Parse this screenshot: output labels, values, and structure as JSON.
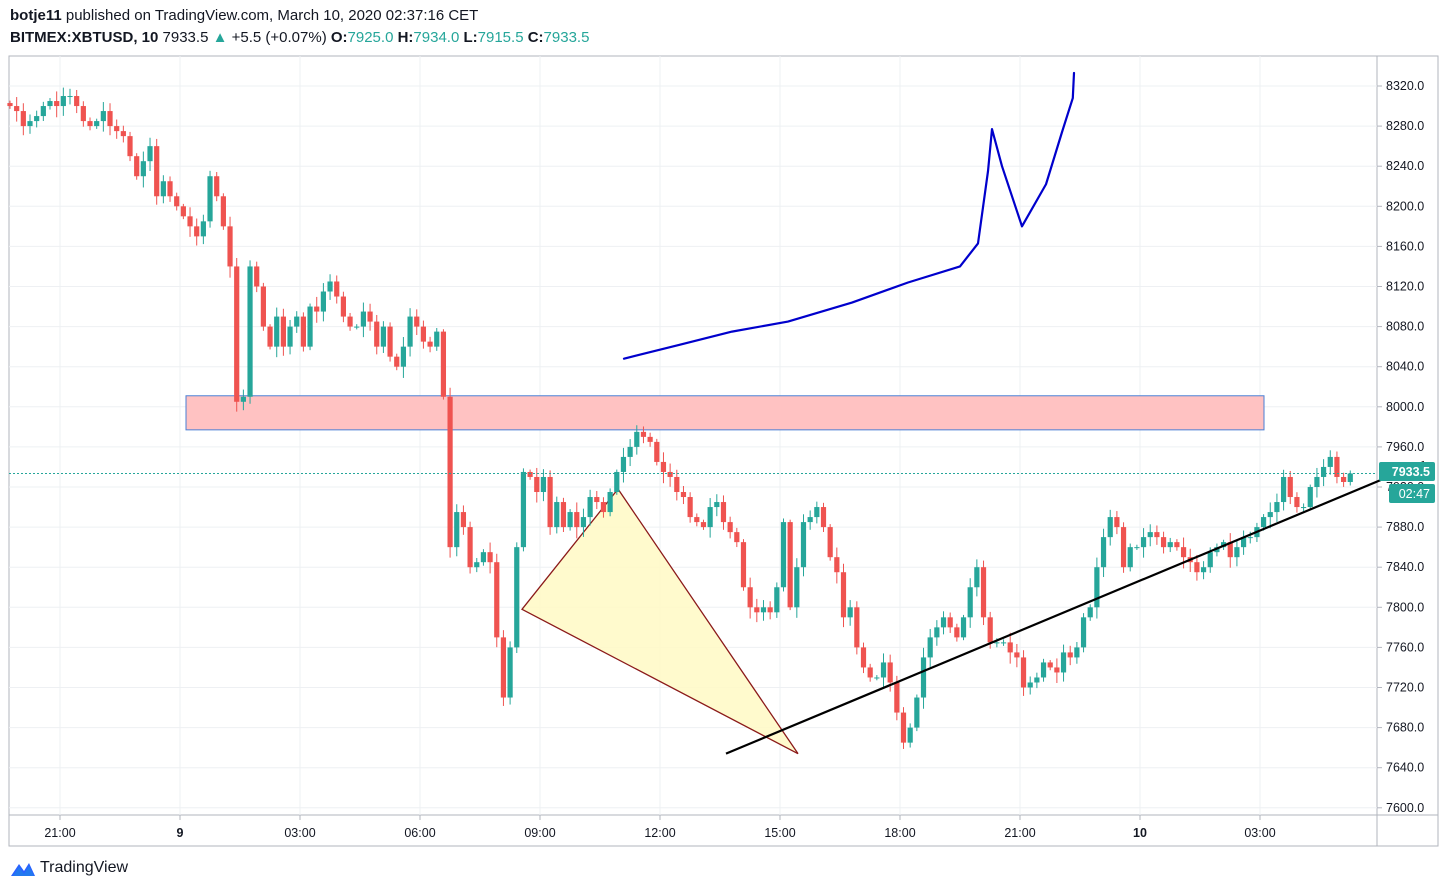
{
  "header": {
    "author": "botje11",
    "published_text": "published on TradingView.com, March 10, 2020 02:37:16 CET",
    "symbol": "BITMEX:XBTUSD, 10",
    "last": "7933.5",
    "arrow": "▲",
    "change": "+5.5 (+0.07%)",
    "o_label": "O:",
    "o_value": "7925.0",
    "h_label": "H:",
    "h_value": "7934.0",
    "l_label": "L:",
    "l_value": "7915.5",
    "c_label": "C:",
    "c_value": "7933.5"
  },
  "price_badge": "7933.5",
  "time_badge": "02:47",
  "footer": {
    "brand": "TradingView",
    "logo_icon": "tradingview-logo-icon"
  },
  "colors": {
    "up": "#26a69a",
    "down": "#ef5350",
    "zone_fill": "#ffc2c2",
    "zone_border": "#4a7fd4",
    "triangle_fill": "#fff9c4",
    "triangle_border": "#8b1a1a",
    "blue_line": "#0000cc",
    "trend_line": "#000000"
  },
  "chart_data": {
    "type": "candlestick",
    "symbol": "BITMEX:XBTUSD",
    "interval": "10",
    "y_ticks": [
      "8320.0",
      "8280.0",
      "8240.0",
      "8200.0",
      "8160.0",
      "8120.0",
      "8080.0",
      "8040.0",
      "8000.0",
      "7960.0",
      "7920.0",
      "7880.0",
      "7840.0",
      "7800.0",
      "7760.0",
      "7720.0",
      "7680.0",
      "7640.0",
      "7600.0"
    ],
    "ylim": [
      7595,
      8345
    ],
    "x_ticks": [
      "21:00",
      "9",
      "03:00",
      "06:00",
      "09:00",
      "12:00",
      "15:00",
      "18:00",
      "21:00",
      "10",
      "03:00"
    ],
    "x_tick_hours": [
      0,
      3,
      6,
      9,
      12,
      15,
      18,
      21,
      24,
      27,
      30
    ],
    "grid": true,
    "candle_start_hour": -1.25,
    "candle_step_hours": 0.1667,
    "closes": [
      8300,
      8295,
      8280,
      8285,
      8290,
      8300,
      8305,
      8300,
      8310,
      8310,
      8300,
      8285,
      8280,
      8285,
      8295,
      8280,
      8275,
      8270,
      8250,
      8230,
      8245,
      8260,
      8210,
      8225,
      8210,
      8200,
      8190,
      8180,
      8170,
      8185,
      8230,
      8210,
      8180,
      8140,
      8005,
      8010,
      8140,
      8120,
      8080,
      8060,
      8090,
      8060,
      8080,
      8090,
      8060,
      8100,
      8095,
      8115,
      8125,
      8110,
      8090,
      8080,
      8080,
      8095,
      8085,
      8060,
      8080,
      8050,
      8040,
      8060,
      8090,
      8080,
      8065,
      8060,
      8075,
      8010,
      7860,
      7895,
      7880,
      7840,
      7845,
      7855,
      7845,
      7770,
      7710,
      7760,
      7860,
      7935,
      7930,
      7915,
      7930,
      7880,
      7905,
      7880,
      7895,
      7880,
      7890,
      7910,
      7905,
      7895,
      7915,
      7935,
      7950,
      7960,
      7975,
      7970,
      7965,
      7945,
      7935,
      7930,
      7915,
      7910,
      7890,
      7885,
      7880,
      7900,
      7905,
      7885,
      7875,
      7865,
      7820,
      7800,
      7795,
      7800,
      7795,
      7820,
      7885,
      7800,
      7840,
      7885,
      7890,
      7900,
      7880,
      7850,
      7835,
      7790,
      7800,
      7760,
      7740,
      7730,
      7730,
      7745,
      7725,
      7695,
      7665,
      7680,
      7710,
      7750,
      7770,
      7780,
      7790,
      7780,
      7770,
      7790,
      7820,
      7840,
      7790,
      7765,
      7765,
      7765,
      7755,
      7750,
      7720,
      7725,
      7730,
      7745,
      7740,
      7735,
      7755,
      7750,
      7760,
      7790,
      7800,
      7840,
      7870,
      7890,
      7880,
      7840,
      7860,
      7860,
      7870,
      7875,
      7870,
      7860,
      7865,
      7860,
      7850,
      7845,
      7835,
      7840,
      7855,
      7860,
      7865,
      7850,
      7860,
      7870,
      7870,
      7880,
      7890,
      7895,
      7905,
      7930,
      7910,
      7900,
      7900,
      7920,
      7930,
      7940,
      7950,
      7930,
      7925,
      7933.5
    ],
    "last_price": 7933.5,
    "resistance_zone": [
      7977,
      8011
    ],
    "trendline": {
      "from": [
        16.65,
        7654
      ],
      "to": [
        34.1,
        7945
      ]
    },
    "triangle": [
      [
        11.55,
        7798
      ],
      [
        13.95,
        7918
      ],
      [
        18.45,
        7654
      ]
    ],
    "projection_path": [
      [
        14.1,
        8048
      ],
      [
        15.5,
        8062
      ],
      [
        16.8,
        8075
      ],
      [
        18.2,
        8085
      ],
      [
        19.8,
        8104
      ],
      [
        21.2,
        8124
      ],
      [
        22.5,
        8140
      ],
      [
        22.95,
        8163
      ],
      [
        23.2,
        8235
      ],
      [
        23.3,
        8277
      ],
      [
        23.55,
        8240
      ],
      [
        24.05,
        8180
      ],
      [
        24.65,
        8222
      ],
      [
        25.05,
        8274
      ],
      [
        25.32,
        8308
      ],
      [
        25.35,
        8333
      ]
    ]
  }
}
